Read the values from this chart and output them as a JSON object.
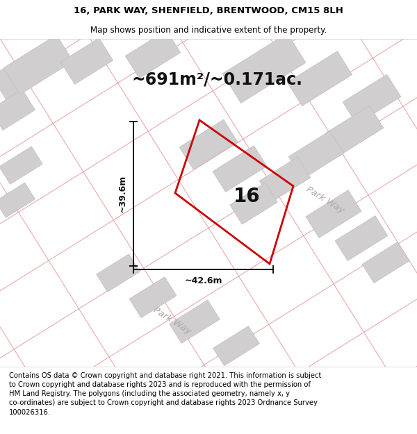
{
  "title_line1": "16, PARK WAY, SHENFIELD, BRENTWOOD, CM15 8LH",
  "title_line2": "Map shows position and indicative extent of the property.",
  "area_text": "~691m²/~0.171ac.",
  "label_16": "16",
  "dim_width": "~42.6m",
  "dim_height": "~39.6m",
  "park_way_label_top": "Park Way",
  "park_way_label_bottom": "Park Way",
  "footer_text": "Contains OS data © Crown copyright and database right 2021. This information is subject to Crown copyright and database rights 2023 and is reproduced with the permission of HM Land Registry. The polygons (including the associated geometry, namely x, y co-ordinates) are subject to Crown copyright and database rights 2023 Ordnance Survey 100026316.",
  "map_bg": "#f2f0f0",
  "red_parcel": "#cc0000",
  "pink_lines": "#e8a0a0",
  "gray_blocks": "#d0cecf",
  "gray_block_edge": "#c0bebe",
  "dim_line_color": "#111111",
  "title_fontsize": 9.5,
  "subtitle_fontsize": 8.5,
  "area_fontsize": 17,
  "label_fontsize": 20,
  "dim_fontsize": 9,
  "footer_fontsize": 7.2,
  "park_way_fontsize": 9.5
}
